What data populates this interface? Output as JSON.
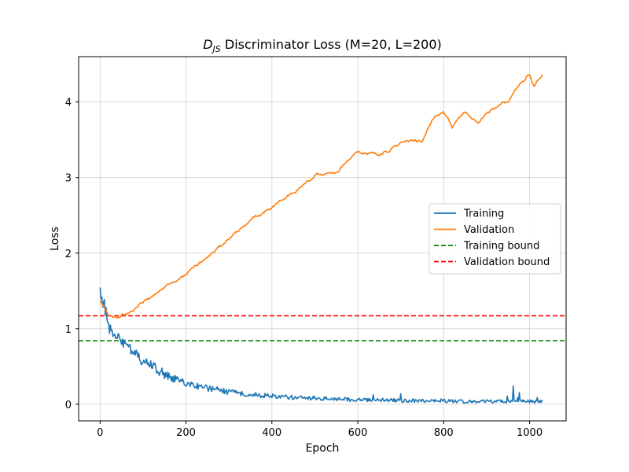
{
  "chart_data": {
    "type": "line",
    "title": {
      "main": "D",
      "sub": "JS",
      "rest": " Discriminator Loss (M=20, L=200)"
    },
    "xlabel": "Epoch",
    "ylabel": "Loss",
    "xlim": [
      -50,
      1085
    ],
    "ylim": [
      -0.22,
      4.6
    ],
    "xticks": [
      0,
      200,
      400,
      600,
      800,
      1000
    ],
    "yticks": [
      0,
      1,
      2,
      3,
      4
    ],
    "grid": true,
    "legend_position": "center-right",
    "series": [
      {
        "name": "Training",
        "color": "#1f77b4",
        "style": "solid",
        "noise": 0.06,
        "x": [
          0,
          5,
          10,
          20,
          30,
          40,
          60,
          80,
          100,
          120,
          150,
          180,
          200,
          250,
          300,
          350,
          400,
          450,
          500,
          550,
          600,
          650,
          700,
          750,
          800,
          850,
          900,
          950,
          1000,
          1030
        ],
        "y": [
          1.47,
          1.35,
          1.2,
          1.0,
          0.93,
          0.86,
          0.74,
          0.64,
          0.56,
          0.48,
          0.38,
          0.3,
          0.26,
          0.2,
          0.15,
          0.12,
          0.1,
          0.08,
          0.07,
          0.06,
          0.05,
          0.05,
          0.04,
          0.04,
          0.04,
          0.03,
          0.03,
          0.03,
          0.03,
          0.03
        ]
      },
      {
        "name": "Validation",
        "color": "#ff7f0e",
        "style": "solid",
        "noise": 0.015,
        "x": [
          0,
          10,
          20,
          30,
          40,
          60,
          80,
          100,
          150,
          200,
          250,
          300,
          350,
          400,
          450,
          500,
          550,
          600,
          650,
          700,
          750,
          780,
          800,
          820,
          850,
          880,
          900,
          950,
          1000,
          1010,
          1030
        ],
        "y": [
          1.37,
          1.25,
          1.18,
          1.15,
          1.16,
          1.2,
          1.27,
          1.35,
          1.55,
          1.74,
          1.93,
          2.18,
          2.42,
          2.6,
          2.8,
          3.03,
          3.08,
          3.33,
          3.3,
          3.45,
          3.5,
          3.8,
          3.9,
          3.65,
          3.87,
          3.72,
          3.85,
          4.02,
          4.38,
          4.22,
          4.33
        ]
      }
    ],
    "hlines": [
      {
        "name": "Training bound",
        "y": 0.84,
        "color": "#008000",
        "style": "dashed"
      },
      {
        "name": "Validation bound",
        "y": 1.17,
        "color": "#ff0000",
        "style": "dashed"
      }
    ]
  }
}
